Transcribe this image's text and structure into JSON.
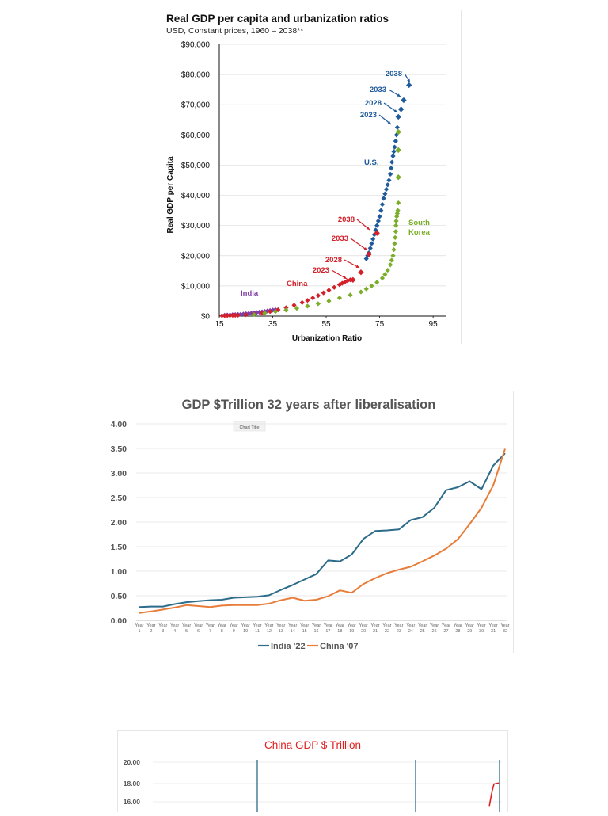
{
  "chart_data": [
    {
      "type": "scatter",
      "title": "Real GDP per capita and urbanization ratios",
      "subtitle": "USD, Constant prices, 1960 – 2038**",
      "xlabel": "Urbanization Ratio",
      "ylabel": "Real GDP per Capita",
      "xlim": [
        15,
        100
      ],
      "ylim": [
        0,
        90000
      ],
      "x_ticks": [
        "15",
        "35",
        "55",
        "75",
        "95"
      ],
      "y_ticks": [
        "$0",
        "$10,000",
        "$20,000",
        "$30,000",
        "$40,000",
        "$50,000",
        "$60,000",
        "$70,000",
        "$80,000",
        "$90,000"
      ],
      "grid": true,
      "series": [
        {
          "name": "India",
          "color": "#7e3fa6",
          "x": [
            17,
            18,
            19,
            20,
            21,
            22,
            23,
            24,
            25,
            26,
            27,
            28,
            29,
            30,
            31,
            32,
            33,
            34,
            35,
            36
          ],
          "y": [
            300,
            350,
            400,
            450,
            500,
            550,
            600,
            700,
            800,
            900,
            1000,
            1100,
            1200,
            1300,
            1400,
            1550,
            1700,
            1850,
            2000,
            2150
          ]
        },
        {
          "name": "China",
          "color": "#d3202a",
          "x": [
            16,
            17,
            18,
            19,
            20,
            21,
            22,
            25,
            28,
            31,
            34,
            37,
            40,
            43,
            46,
            48,
            50,
            52,
            54,
            56,
            58,
            60,
            61,
            62,
            63,
            64
          ],
          "y": [
            150,
            150,
            200,
            200,
            250,
            250,
            300,
            450,
            700,
            1000,
            1500,
            2100,
            2800,
            3600,
            4500,
            5200,
            6000,
            6800,
            7700,
            8600,
            9500,
            10400,
            10900,
            11300,
            11700,
            12000
          ]
        },
        {
          "name": "South Korea",
          "color": "#7aad2a",
          "x": [
            28,
            32,
            36,
            40,
            44,
            48,
            52,
            56,
            60,
            64,
            68,
            70,
            72,
            74,
            76,
            77,
            78,
            79,
            79.5,
            80,
            80.3,
            80.6,
            80.8,
            81,
            81.1,
            81.2,
            81.4,
            81.6,
            81.8,
            82
          ],
          "y": [
            500,
            1000,
            1500,
            2000,
            2600,
            3300,
            4100,
            5000,
            6000,
            7000,
            8000,
            9000,
            10000,
            11200,
            12600,
            13800,
            15200,
            17000,
            18500,
            20000,
            22000,
            24000,
            26000,
            28000,
            30000,
            31500,
            33000,
            34000,
            35000,
            37500
          ]
        },
        {
          "name": "U.S.",
          "color": "#1f5a9c",
          "x": [
            70,
            70.5,
            71,
            71.5,
            72,
            72.5,
            73,
            73.5,
            74,
            74.5,
            75,
            75.5,
            76,
            76.5,
            77,
            77.5,
            78,
            78.5,
            79,
            79.3,
            79.6,
            80,
            80.3,
            80.6,
            81,
            81.3,
            81.6
          ],
          "y": [
            19000,
            20000,
            21000,
            22500,
            24000,
            25500,
            27000,
            28500,
            30000,
            31500,
            33000,
            35000,
            37000,
            39000,
            40500,
            42000,
            43500,
            45000,
            47000,
            49000,
            51000,
            53000,
            54500,
            56000,
            58000,
            60000,
            62500
          ]
        }
      ],
      "projections": {
        "China": {
          "years": [
            "2023",
            "2028",
            "2033",
            "2038"
          ],
          "x": [
            65,
            68,
            71,
            74
          ],
          "y": [
            12000,
            14500,
            20500,
            27500
          ]
        },
        "U.S.": {
          "years": [
            "2023",
            "2033",
            "2028",
            "2038"
          ],
          "x": [
            82,
            84,
            83,
            86
          ],
          "y": [
            66000,
            71500,
            68500,
            76500
          ]
        },
        "South Korea": {
          "x": [
            82,
            82,
            82
          ],
          "y": [
            46000,
            55000,
            61000
          ]
        }
      },
      "labels": {
        "india": "India",
        "china": "China",
        "us": "U.S.",
        "sk1": "South",
        "sk2": "Korea",
        "y2038": "2038",
        "y2033": "2033",
        "y2028": "2028",
        "y2023": "2023"
      }
    },
    {
      "type": "line",
      "title": "GDP $Trillion 32 years after liberalisation",
      "annotation": "Chart Title",
      "ylim": [
        0,
        4
      ],
      "y_ticks": [
        "0.00",
        "0.50",
        "1.00",
        "1.50",
        "2.00",
        "2.50",
        "3.00",
        "3.50",
        "4.00"
      ],
      "categories": [
        "1",
        "2",
        "3",
        "4",
        "5",
        "6",
        "7",
        "8",
        "9",
        "10",
        "11",
        "12",
        "13",
        "14",
        "15",
        "16",
        "17",
        "18",
        "19",
        "20",
        "21",
        "22",
        "23",
        "24",
        "25",
        "26",
        "27",
        "28",
        "29",
        "30",
        "31",
        "32"
      ],
      "category_prefix": "Year",
      "grid": true,
      "legend": "bottom",
      "series": [
        {
          "name": "India '22",
          "color": "#2c6b8a",
          "values": [
            0.27,
            0.28,
            0.28,
            0.33,
            0.37,
            0.39,
            0.41,
            0.42,
            0.46,
            0.47,
            0.48,
            0.51,
            0.62,
            0.72,
            0.83,
            0.94,
            1.22,
            1.2,
            1.34,
            1.66,
            1.82,
            1.83,
            1.85,
            2.04,
            2.1,
            2.29,
            2.65,
            2.71,
            2.83,
            2.67,
            3.15,
            3.4
          ]
        },
        {
          "name": "China '07",
          "color": "#e87d3a",
          "values": [
            0.15,
            0.18,
            0.22,
            0.26,
            0.31,
            0.29,
            0.27,
            0.3,
            0.31,
            0.31,
            0.31,
            0.34,
            0.41,
            0.46,
            0.4,
            0.42,
            0.49,
            0.61,
            0.56,
            0.74,
            0.86,
            0.96,
            1.03,
            1.09,
            1.2,
            1.32,
            1.46,
            1.65,
            1.96,
            2.29,
            2.75,
            3.49
          ]
        }
      ]
    },
    {
      "type": "line",
      "title": "China GDP $ Trillion",
      "y_ticks": [
        "20.00",
        "18.00",
        "16.00"
      ],
      "ylim_visible": [
        15.5,
        20
      ],
      "series": [
        {
          "name": "",
          "color": "#e02020",
          "values": [
            15.5,
            16.4,
            17.2,
            17.8,
            17.9
          ]
        }
      ]
    }
  ]
}
